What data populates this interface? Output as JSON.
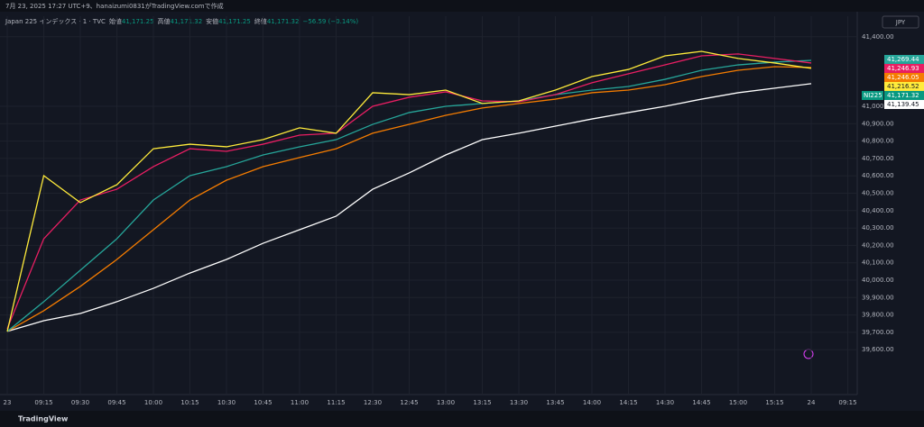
{
  "header": {
    "created": "7月 23, 2025 17:27 UTC+9、hanaizumi0831がTradingView.comで作成",
    "symbol": "Japan 225 インデックス · 1 · TVC",
    "ohlc": [
      {
        "label": "始値",
        "value": "41,171.25"
      },
      {
        "label": "高値",
        "value": "41,171.32"
      },
      {
        "label": "安値",
        "value": "41,171.25"
      },
      {
        "label": "終値",
        "value": "41,171.32"
      }
    ],
    "change": "−56.59 (−0.14%)",
    "currency": "JPY"
  },
  "footer": {
    "brand": "TradingView"
  },
  "chart_data": {
    "type": "line",
    "categories": [
      "23",
      "09:15",
      "09:30",
      "09:45",
      "10:00",
      "10:15",
      "10:30",
      "10:45",
      "11:00",
      "11:15",
      "12:30",
      "12:45",
      "13:00",
      "13:15",
      "13:30",
      "13:45",
      "14:00",
      "14:15",
      "14:30",
      "14:45",
      "15:00",
      "15:15",
      "24",
      "09:15"
    ],
    "series": [
      {
        "color": "#ffffff",
        "values": [
          39705,
          39767,
          39808,
          39876,
          39953,
          40041,
          40119,
          40212,
          40290,
          40368,
          40523,
          40617,
          40720,
          40808,
          40845,
          40886,
          40927,
          40964,
          41000,
          41041,
          41078,
          41104,
          41130,
          null
        ]
      },
      {
        "color": "#f57c00",
        "values": [
          39705,
          39824,
          39964,
          40119,
          40290,
          40461,
          40575,
          40653,
          40705,
          40756,
          40845,
          40896,
          40948,
          40990,
          41016,
          41041,
          41078,
          41093,
          41124,
          41171,
          41207,
          41228,
          41223,
          null
        ]
      },
      {
        "color": "#26a69a",
        "values": [
          39705,
          39876,
          40057,
          40238,
          40461,
          40601,
          40653,
          40720,
          40767,
          40808,
          40896,
          40964,
          41000,
          41016,
          41031,
          41067,
          41093,
          41114,
          41155,
          41207,
          41238,
          41254,
          41264,
          null
        ]
      },
      {
        "color": "#e91e63",
        "values": [
          39720,
          40238,
          40461,
          40523,
          40653,
          40756,
          40741,
          40782,
          40834,
          40845,
          41000,
          41052,
          41083,
          41031,
          41026,
          41067,
          41135,
          41187,
          41238,
          41290,
          41301,
          41275,
          41249,
          null
        ]
      },
      {
        "color": "#ffeb3b",
        "values": [
          39705,
          40601,
          40446,
          40549,
          40756,
          40782,
          40767,
          40808,
          40876,
          40845,
          41078,
          41067,
          41093,
          41016,
          41031,
          41093,
          41171,
          41212,
          41290,
          41316,
          41275,
          41249,
          41218,
          null
        ]
      }
    ],
    "ylim": [
      39342,
      41518
    ],
    "yticks": [
      {
        "value": 39600,
        "label": "39,600.00"
      },
      {
        "value": 39700,
        "label": "39,700.00"
      },
      {
        "value": 39800,
        "label": "39,800.00"
      },
      {
        "value": 39900,
        "label": "39,900.00"
      },
      {
        "value": 40000,
        "label": "40,000.00"
      },
      {
        "value": 40100,
        "label": "40,100.00"
      },
      {
        "value": 40200,
        "label": "40,200.00"
      },
      {
        "value": 40300,
        "label": "40,300.00"
      },
      {
        "value": 40400,
        "label": "40,400.00"
      },
      {
        "value": 40500,
        "label": "40,500.00"
      },
      {
        "value": 40600,
        "label": "40,600.00"
      },
      {
        "value": 40700,
        "label": "40,700.00"
      },
      {
        "value": 40800,
        "label": "40,800.00"
      },
      {
        "value": 40900,
        "label": "40,900.00"
      },
      {
        "value": 41000,
        "label": "41,000.00"
      },
      {
        "value": 41400,
        "label": "41,400.00"
      }
    ],
    "grid": true,
    "last_values": [
      {
        "value": 41269.44,
        "label": "41,269.44",
        "color": "#26a69a"
      },
      {
        "value": 41246.93,
        "label": "41,246.93",
        "color": "#e91e63"
      },
      {
        "value": 41246.05,
        "label": "41,246.05",
        "color": "#f57c00"
      },
      {
        "value": 41216.52,
        "label": "41,216.52",
        "color": "#ffeb3b"
      },
      {
        "value": 41171.32,
        "label": "41,171.32",
        "color": "#089981",
        "tag": "NI225"
      },
      {
        "value": 41139.45,
        "label": "41,139.45",
        "color": "#ffffff"
      }
    ]
  }
}
